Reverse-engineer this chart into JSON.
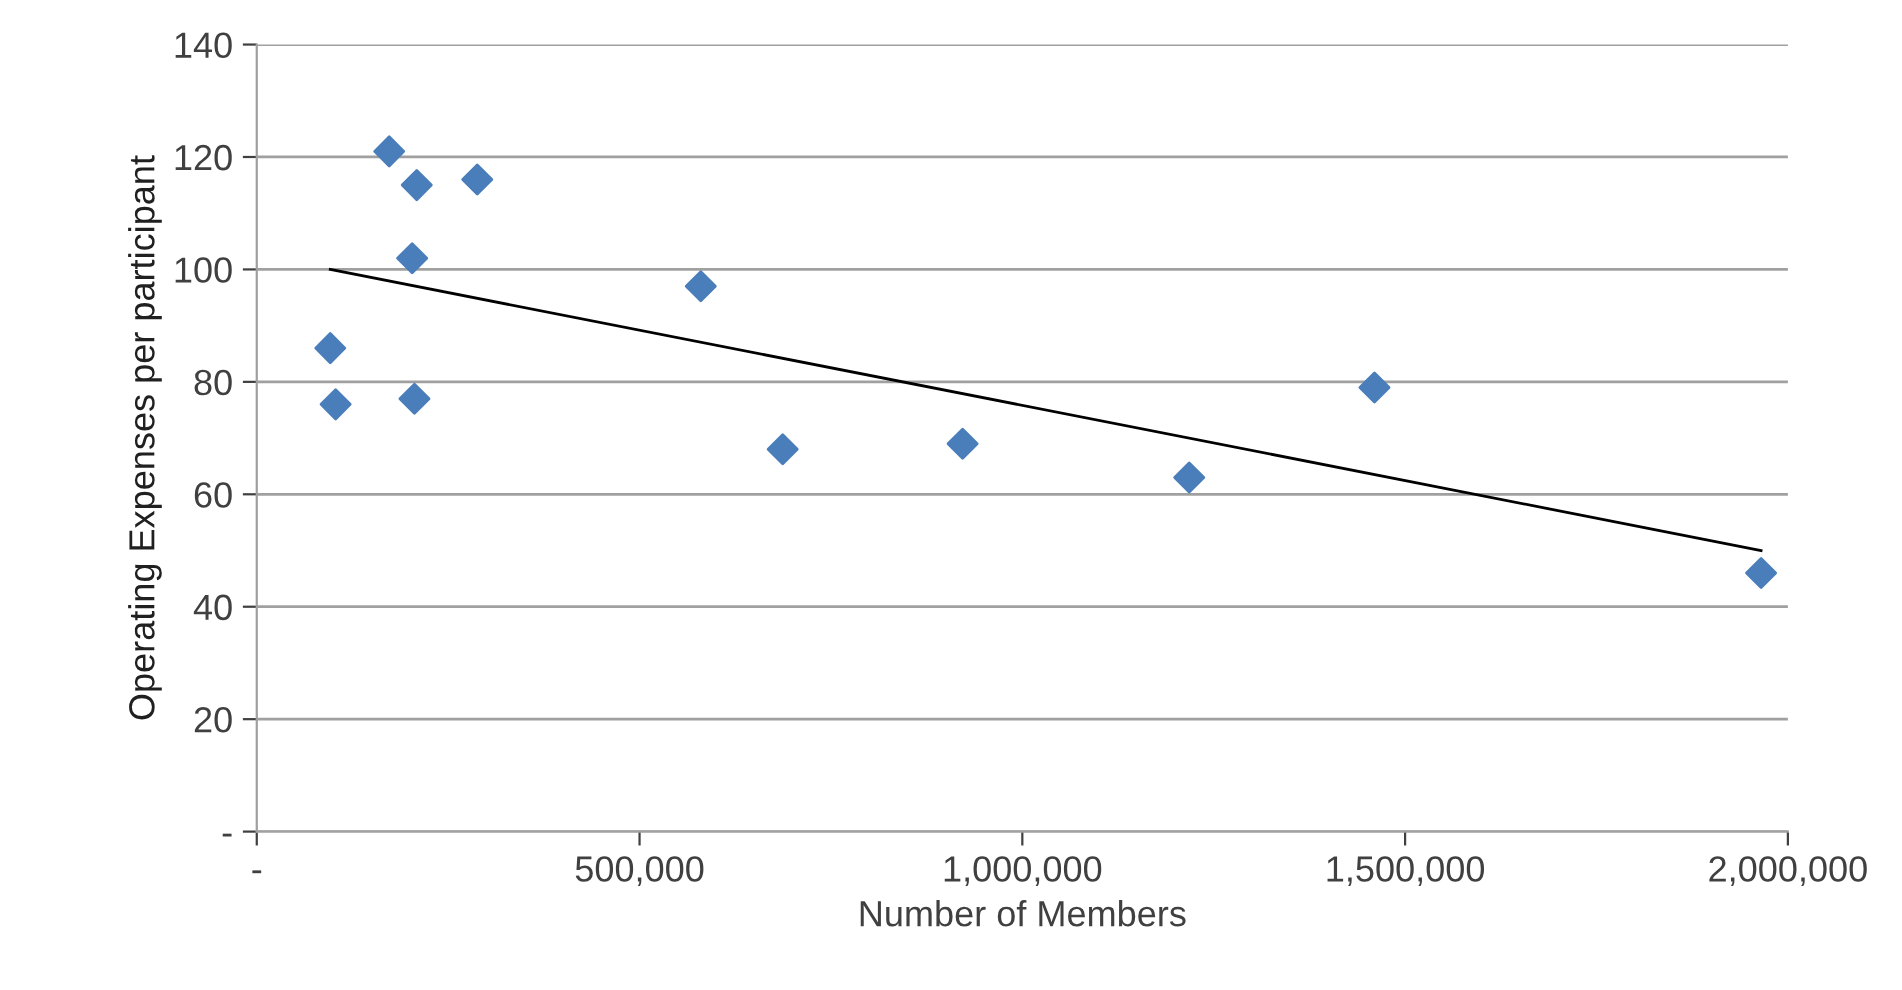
{
  "chart_data": {
    "type": "scatter",
    "xlabel": "Number of Members",
    "ylabel": "Operating Expenses per participant",
    "series": [
      {
        "color": "#4a7ebb",
        "marker": "diamond",
        "x": [
          96000,
          103000,
          173000,
          209000,
          288000,
          203000,
          206000,
          580000,
          687000,
          922000,
          1218000,
          1460000,
          1965000
        ],
        "values": [
          86,
          76,
          121,
          115,
          116,
          102,
          77,
          97,
          68,
          69,
          63,
          79,
          46
        ]
      },
      {
        "type": "line",
        "color": "#000000",
        "marker": "none",
        "x": [
          96000,
          1965000
        ],
        "values": [
          100,
          50
        ]
      }
    ],
    "xlim": [
      0,
      2000000
    ],
    "xticks": [
      {
        "value": 0,
        "label": "-"
      },
      {
        "value": 500000,
        "label": "500,000"
      },
      {
        "value": 1000000,
        "label": "1,000,000"
      },
      {
        "value": 1500000,
        "label": "1,500,000"
      },
      {
        "value": 2000000,
        "label": "2,000,000"
      }
    ],
    "ylim": [
      0,
      140
    ],
    "yticks": [
      {
        "value": 0,
        "label": "-"
      },
      20,
      40,
      60,
      80,
      100,
      120,
      140
    ],
    "grid": "y"
  }
}
